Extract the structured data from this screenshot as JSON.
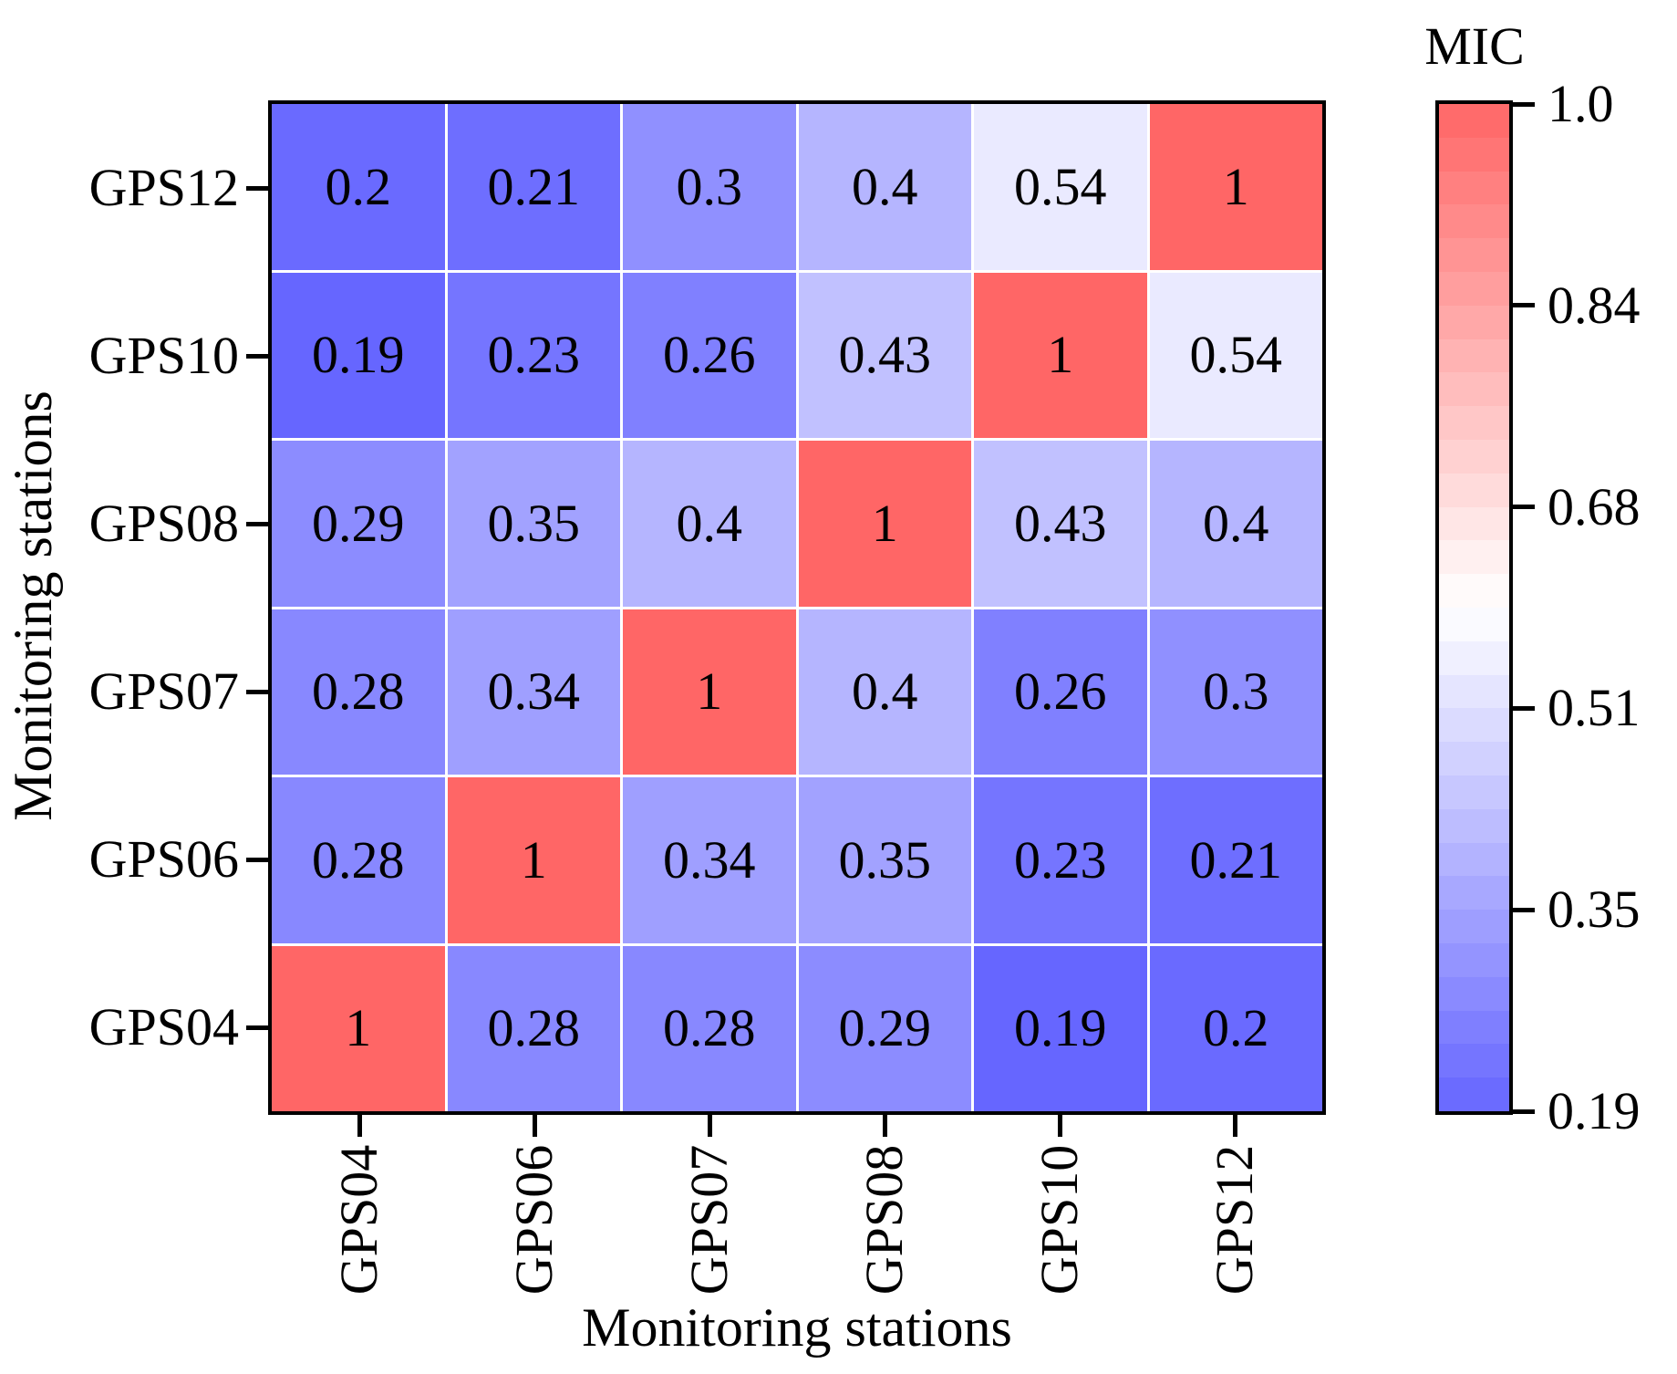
{
  "figure": {
    "x_axis_title": "Monitoring stations",
    "y_axis_title": "Monitoring stations"
  },
  "chart_data": {
    "type": "heatmap",
    "title": "",
    "xlabel": "Monitoring stations",
    "ylabel": "Monitoring stations",
    "x_categories": [
      "GPS04",
      "GPS06",
      "GPS07",
      "GPS08",
      "GPS10",
      "GPS12"
    ],
    "y_categories_top_to_bottom": [
      "GPS12",
      "GPS10",
      "GPS08",
      "GPS07",
      "GPS06",
      "GPS04"
    ],
    "matrix_rows_top_to_bottom": [
      [
        0.2,
        0.21,
        0.3,
        0.4,
        0.54,
        1
      ],
      [
        0.19,
        0.23,
        0.26,
        0.43,
        1,
        0.54
      ],
      [
        0.29,
        0.35,
        0.4,
        1,
        0.43,
        0.4
      ],
      [
        0.28,
        0.34,
        1,
        0.4,
        0.26,
        0.3
      ],
      [
        0.28,
        1,
        0.34,
        0.35,
        0.23,
        0.21
      ],
      [
        1,
        0.28,
        0.28,
        0.29,
        0.19,
        0.2
      ]
    ],
    "grid_line_color": "#FFFFFF",
    "border_color": "#000000",
    "colorbar": {
      "title": "MIC",
      "tick_labels": [
        "1.0",
        "0.84",
        "0.68",
        "0.51",
        "0.35",
        "0.19"
      ],
      "vmin": 0.19,
      "vmax": 1.0,
      "steps": 30,
      "colormap": {
        "low": "#6666FF",
        "mid": "#FFFFFF",
        "high": "#FF6666"
      },
      "legend_position": "right"
    }
  }
}
